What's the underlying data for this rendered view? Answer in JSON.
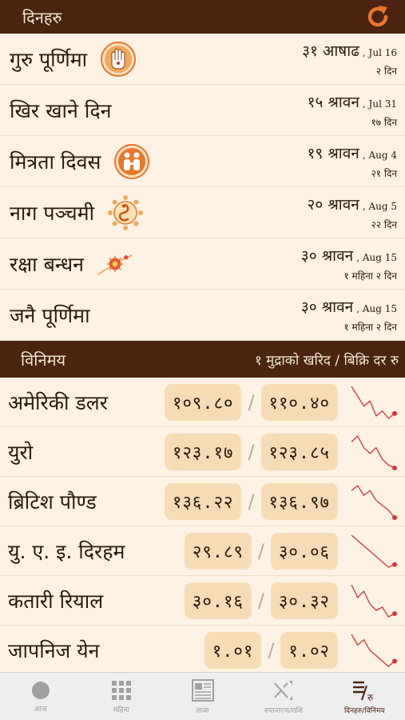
{
  "festivals": {
    "header": "दिनहरु",
    "items": [
      {
        "name": "गुरु पूर्णिमा",
        "date": "३१ आषाढ",
        "eng": ", Jul 16",
        "remaining": "२ दिन",
        "icon": "hand-blessing-icon"
      },
      {
        "name": "खिर खाने दिन",
        "date": "१५ श्रावन",
        "eng": ", Jul 31",
        "remaining": "१७ दिन",
        "icon": ""
      },
      {
        "name": "मित्रता दिवस",
        "date": "१९ श्रावन",
        "eng": ", Aug 4",
        "remaining": "२१ दिन",
        "icon": "friends-icon"
      },
      {
        "name": "नाग पञ्चमी",
        "date": "२० श्रावन",
        "eng": ", Aug 5",
        "remaining": "२२ दिन",
        "icon": "snake-icon"
      },
      {
        "name": "रक्षा बन्धन",
        "date": "३० श्रावन",
        "eng": ", Aug 15",
        "remaining": "१ महिना २ दिन",
        "icon": "rakhi-icon"
      },
      {
        "name": "जनै पूर्णिमा",
        "date": "३० श्रावन",
        "eng": ", Aug 15",
        "remaining": "१ महिना २ दिन",
        "icon": ""
      }
    ]
  },
  "exchange": {
    "header": "विनिमय",
    "caption": "१ मुद्राको खरिद / बिक्रि दर रु",
    "separator": "/",
    "items": [
      {
        "name": "अमेरिकी डलर",
        "buy": "१०९.८०",
        "sell": "११०.४०",
        "trend": [
          8,
          6,
          4,
          5,
          2,
          3,
          1.5,
          2.5
        ]
      },
      {
        "name": "युरो",
        "buy": "१२३.१७",
        "sell": "१२३.८५",
        "trend": [
          7,
          8,
          6,
          5,
          6,
          4,
          3,
          2.5
        ]
      },
      {
        "name": "ब्रिटिश पौण्ड",
        "buy": "१३६.२२",
        "sell": "१३६.९७",
        "trend": [
          7,
          8,
          6,
          7,
          5,
          4,
          3,
          1.5
        ]
      },
      {
        "name": "यु. ए. इ. दिरहम",
        "buy": "२९.८९",
        "sell": "३०.०६",
        "trend": [
          8,
          7,
          6,
          5,
          4,
          3,
          2,
          2.5
        ]
      },
      {
        "name": "कतारी रियाल",
        "buy": "३०.१६",
        "sell": "३०.३२",
        "trend": [
          8,
          6,
          7,
          5,
          4,
          4.5,
          3,
          3.5
        ]
      },
      {
        "name": "जापनिज येन",
        "buy": "१.०१",
        "sell": "१.०२",
        "trend": [
          8,
          6,
          7,
          5,
          4,
          3,
          2,
          3
        ]
      }
    ]
  },
  "tabs": [
    {
      "label": "आज",
      "icon": "today-icon"
    },
    {
      "label": "महिना",
      "icon": "month-grid-icon"
    },
    {
      "label": "ताजा",
      "icon": "news-icon"
    },
    {
      "label": "रुपान्तरण/राशि",
      "icon": "convert-icon"
    },
    {
      "label": "दिनहरु/विनिमय",
      "icon": "days-exchange-icon"
    }
  ],
  "colors": {
    "header_bg": "#4a2410",
    "accent": "#e8772a",
    "trend_line": "#d9333a",
    "pill_bg": "#f6dcb5"
  }
}
